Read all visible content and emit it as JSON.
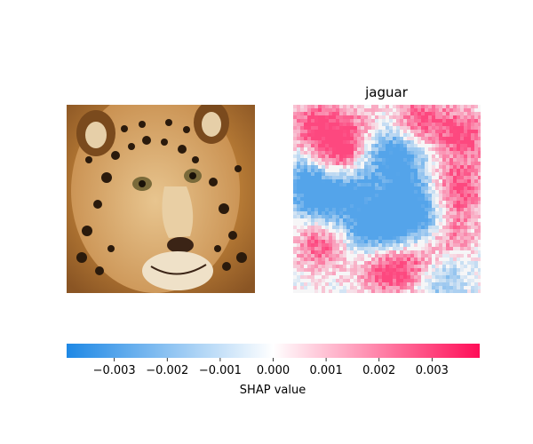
{
  "chart_data": {
    "type": "heatmap",
    "panels": [
      {
        "title": "",
        "kind": "image",
        "image_name": "jaguar-photo"
      },
      {
        "title": "jaguar",
        "kind": "shap-overlay"
      }
    ],
    "colorbar": {
      "label": "SHAP value",
      "range": [
        -0.0039,
        0.0039
      ],
      "ticks": [
        -0.003,
        -0.002,
        -0.001,
        0.0,
        0.001,
        0.002,
        0.003
      ],
      "tick_labels": [
        "−0.003",
        "−0.002",
        "−0.001",
        "0.000",
        "0.001",
        "0.002",
        "0.003"
      ],
      "colors": {
        "negative": "#1E88E5",
        "zero": "#ffffff",
        "positive": "#FF0D57"
      }
    }
  }
}
